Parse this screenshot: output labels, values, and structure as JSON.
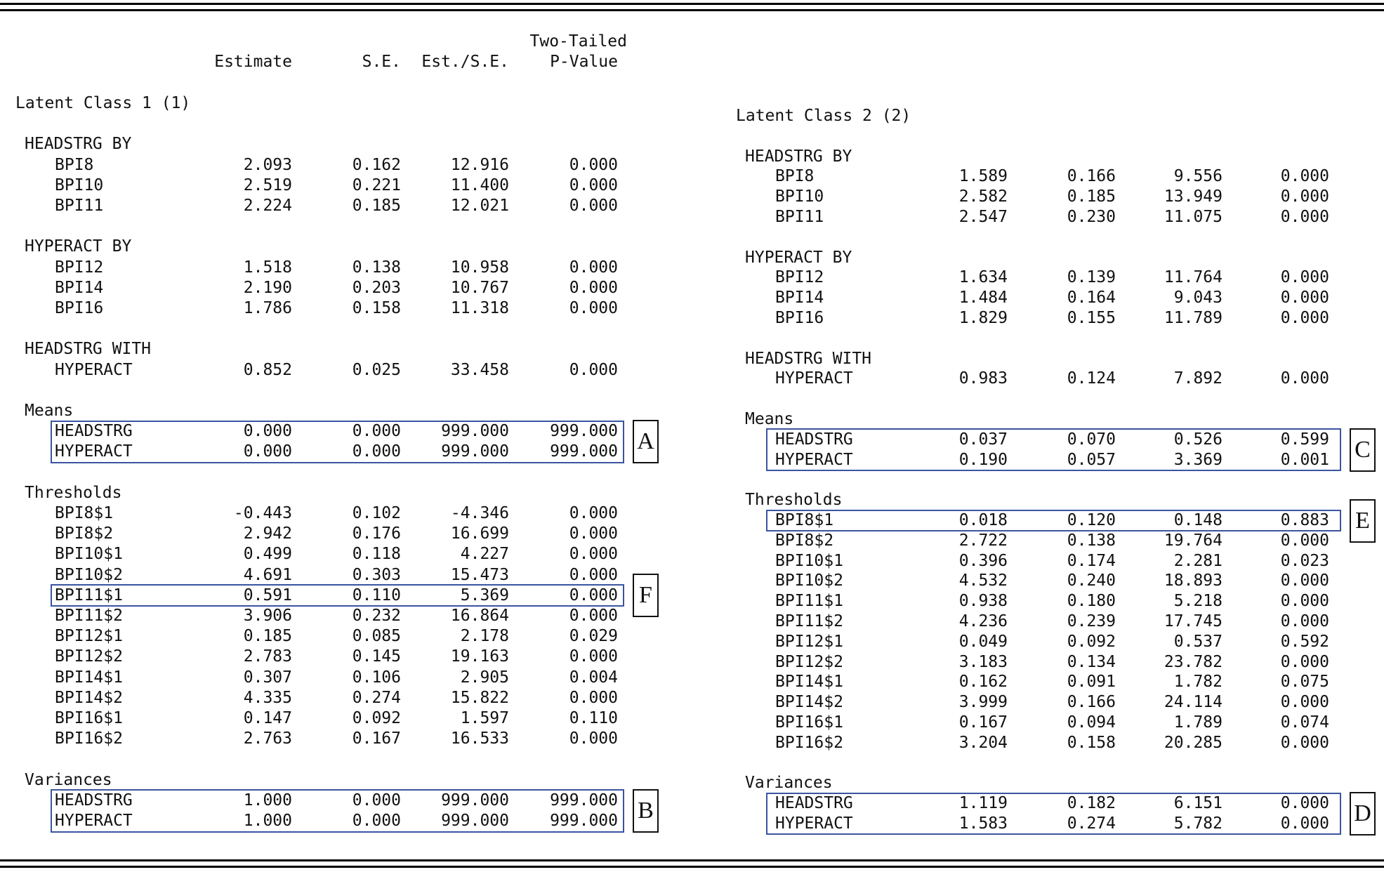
{
  "columns": {
    "header_top": "Two-Tailed",
    "estimate": "Estimate",
    "se": "S.E.",
    "est_se": "Est./S.E.",
    "p_value": "P-Value"
  },
  "colors": {
    "highlight_box": "#3a55a0",
    "text": "#111111"
  },
  "panels": [
    {
      "title": "Latent Class 1 (1)",
      "groups": [
        {
          "heading": "HEADSTRG BY",
          "rows": [
            {
              "label": "BPI8",
              "estimate": "2.093",
              "se": "0.162",
              "est_se": "12.916",
              "p": "0.000"
            },
            {
              "label": "BPI10",
              "estimate": "2.519",
              "se": "0.221",
              "est_se": "11.400",
              "p": "0.000"
            },
            {
              "label": "BPI11",
              "estimate": "2.224",
              "se": "0.185",
              "est_se": "12.021",
              "p": "0.000"
            }
          ]
        },
        {
          "heading": "HYPERACT BY",
          "rows": [
            {
              "label": "BPI12",
              "estimate": "1.518",
              "se": "0.138",
              "est_se": "10.958",
              "p": "0.000"
            },
            {
              "label": "BPI14",
              "estimate": "2.190",
              "se": "0.203",
              "est_se": "10.767",
              "p": "0.000"
            },
            {
              "label": "BPI16",
              "estimate": "1.786",
              "se": "0.158",
              "est_se": "11.318",
              "p": "0.000"
            }
          ]
        },
        {
          "heading": "HEADSTRG WITH",
          "rows": [
            {
              "label": "HYPERACT",
              "estimate": "0.852",
              "se": "0.025",
              "est_se": "33.458",
              "p": "0.000"
            }
          ]
        },
        {
          "heading": "Means",
          "box_label": "A",
          "rows": [
            {
              "label": "HEADSTRG",
              "estimate": "0.000",
              "se": "0.000",
              "est_se": "999.000",
              "p": "999.000"
            },
            {
              "label": "HYPERACT",
              "estimate": "0.000",
              "se": "0.000",
              "est_se": "999.000",
              "p": "999.000"
            }
          ]
        },
        {
          "heading": "Thresholds",
          "rows": [
            {
              "label": "BPI8$1",
              "estimate": "-0.443",
              "se": "0.102",
              "est_se": "-4.346",
              "p": "0.000"
            },
            {
              "label": "BPI8$2",
              "estimate": "2.942",
              "se": "0.176",
              "est_se": "16.699",
              "p": "0.000"
            },
            {
              "label": "BPI10$1",
              "estimate": "0.499",
              "se": "0.118",
              "est_se": "4.227",
              "p": "0.000"
            },
            {
              "label": "BPI10$2",
              "estimate": "4.691",
              "se": "0.303",
              "est_se": "15.473",
              "p": "0.000"
            },
            {
              "label": "BPI11$1",
              "estimate": "0.591",
              "se": "0.110",
              "est_se": "5.369",
              "p": "0.000",
              "box_label": "F"
            },
            {
              "label": "BPI11$2",
              "estimate": "3.906",
              "se": "0.232",
              "est_se": "16.864",
              "p": "0.000"
            },
            {
              "label": "BPI12$1",
              "estimate": "0.185",
              "se": "0.085",
              "est_se": "2.178",
              "p": "0.029"
            },
            {
              "label": "BPI12$2",
              "estimate": "2.783",
              "se": "0.145",
              "est_se": "19.163",
              "p": "0.000"
            },
            {
              "label": "BPI14$1",
              "estimate": "0.307",
              "se": "0.106",
              "est_se": "2.905",
              "p": "0.004"
            },
            {
              "label": "BPI14$2",
              "estimate": "4.335",
              "se": "0.274",
              "est_se": "15.822",
              "p": "0.000"
            },
            {
              "label": "BPI16$1",
              "estimate": "0.147",
              "se": "0.092",
              "est_se": "1.597",
              "p": "0.110"
            },
            {
              "label": "BPI16$2",
              "estimate": "2.763",
              "se": "0.167",
              "est_se": "16.533",
              "p": "0.000"
            }
          ]
        },
        {
          "heading": "Variances",
          "box_label": "B",
          "rows": [
            {
              "label": "HEADSTRG",
              "estimate": "1.000",
              "se": "0.000",
              "est_se": "999.000",
              "p": "999.000"
            },
            {
              "label": "HYPERACT",
              "estimate": "1.000",
              "se": "0.000",
              "est_se": "999.000",
              "p": "999.000"
            }
          ]
        }
      ]
    },
    {
      "title": "Latent Class 2 (2)",
      "groups": [
        {
          "heading": "HEADSTRG BY",
          "rows": [
            {
              "label": "BPI8",
              "estimate": "1.589",
              "se": "0.166",
              "est_se": "9.556",
              "p": "0.000"
            },
            {
              "label": "BPI10",
              "estimate": "2.582",
              "se": "0.185",
              "est_se": "13.949",
              "p": "0.000"
            },
            {
              "label": "BPI11",
              "estimate": "2.547",
              "se": "0.230",
              "est_se": "11.075",
              "p": "0.000"
            }
          ]
        },
        {
          "heading": "HYPERACT BY",
          "rows": [
            {
              "label": "BPI12",
              "estimate": "1.634",
              "se": "0.139",
              "est_se": "11.764",
              "p": "0.000"
            },
            {
              "label": "BPI14",
              "estimate": "1.484",
              "se": "0.164",
              "est_se": "9.043",
              "p": "0.000"
            },
            {
              "label": "BPI16",
              "estimate": "1.829",
              "se": "0.155",
              "est_se": "11.789",
              "p": "0.000"
            }
          ]
        },
        {
          "heading": "HEADSTRG WITH",
          "rows": [
            {
              "label": "HYPERACT",
              "estimate": "0.983",
              "se": "0.124",
              "est_se": "7.892",
              "p": "0.000"
            }
          ]
        },
        {
          "heading": "Means",
          "box_label": "C",
          "rows": [
            {
              "label": "HEADSTRG",
              "estimate": "0.037",
              "se": "0.070",
              "est_se": "0.526",
              "p": "0.599"
            },
            {
              "label": "HYPERACT",
              "estimate": "0.190",
              "se": "0.057",
              "est_se": "3.369",
              "p": "0.001"
            }
          ]
        },
        {
          "heading": "Thresholds",
          "rows": [
            {
              "label": "BPI8$1",
              "estimate": "0.018",
              "se": "0.120",
              "est_se": "0.148",
              "p": "0.883",
              "box_label": "E"
            },
            {
              "label": "BPI8$2",
              "estimate": "2.722",
              "se": "0.138",
              "est_se": "19.764",
              "p": "0.000"
            },
            {
              "label": "BPI10$1",
              "estimate": "0.396",
              "se": "0.174",
              "est_se": "2.281",
              "p": "0.023"
            },
            {
              "label": "BPI10$2",
              "estimate": "4.532",
              "se": "0.240",
              "est_se": "18.893",
              "p": "0.000"
            },
            {
              "label": "BPI11$1",
              "estimate": "0.938",
              "se": "0.180",
              "est_se": "5.218",
              "p": "0.000"
            },
            {
              "label": "BPI11$2",
              "estimate": "4.236",
              "se": "0.239",
              "est_se": "17.745",
              "p": "0.000"
            },
            {
              "label": "BPI12$1",
              "estimate": "0.049",
              "se": "0.092",
              "est_se": "0.537",
              "p": "0.592"
            },
            {
              "label": "BPI12$2",
              "estimate": "3.183",
              "se": "0.134",
              "est_se": "23.782",
              "p": "0.000"
            },
            {
              "label": "BPI14$1",
              "estimate": "0.162",
              "se": "0.091",
              "est_se": "1.782",
              "p": "0.075"
            },
            {
              "label": "BPI14$2",
              "estimate": "3.999",
              "se": "0.166",
              "est_se": "24.114",
              "p": "0.000"
            },
            {
              "label": "BPI16$1",
              "estimate": "0.167",
              "se": "0.094",
              "est_se": "1.789",
              "p": "0.074"
            },
            {
              "label": "BPI16$2",
              "estimate": "3.204",
              "se": "0.158",
              "est_se": "20.285",
              "p": "0.000"
            }
          ]
        },
        {
          "heading": "Variances",
          "box_label": "D",
          "rows": [
            {
              "label": "HEADSTRG",
              "estimate": "1.119",
              "se": "0.182",
              "est_se": "6.151",
              "p": "0.000"
            },
            {
              "label": "HYPERACT",
              "estimate": "1.583",
              "se": "0.274",
              "est_se": "5.782",
              "p": "0.000"
            }
          ]
        }
      ]
    }
  ]
}
